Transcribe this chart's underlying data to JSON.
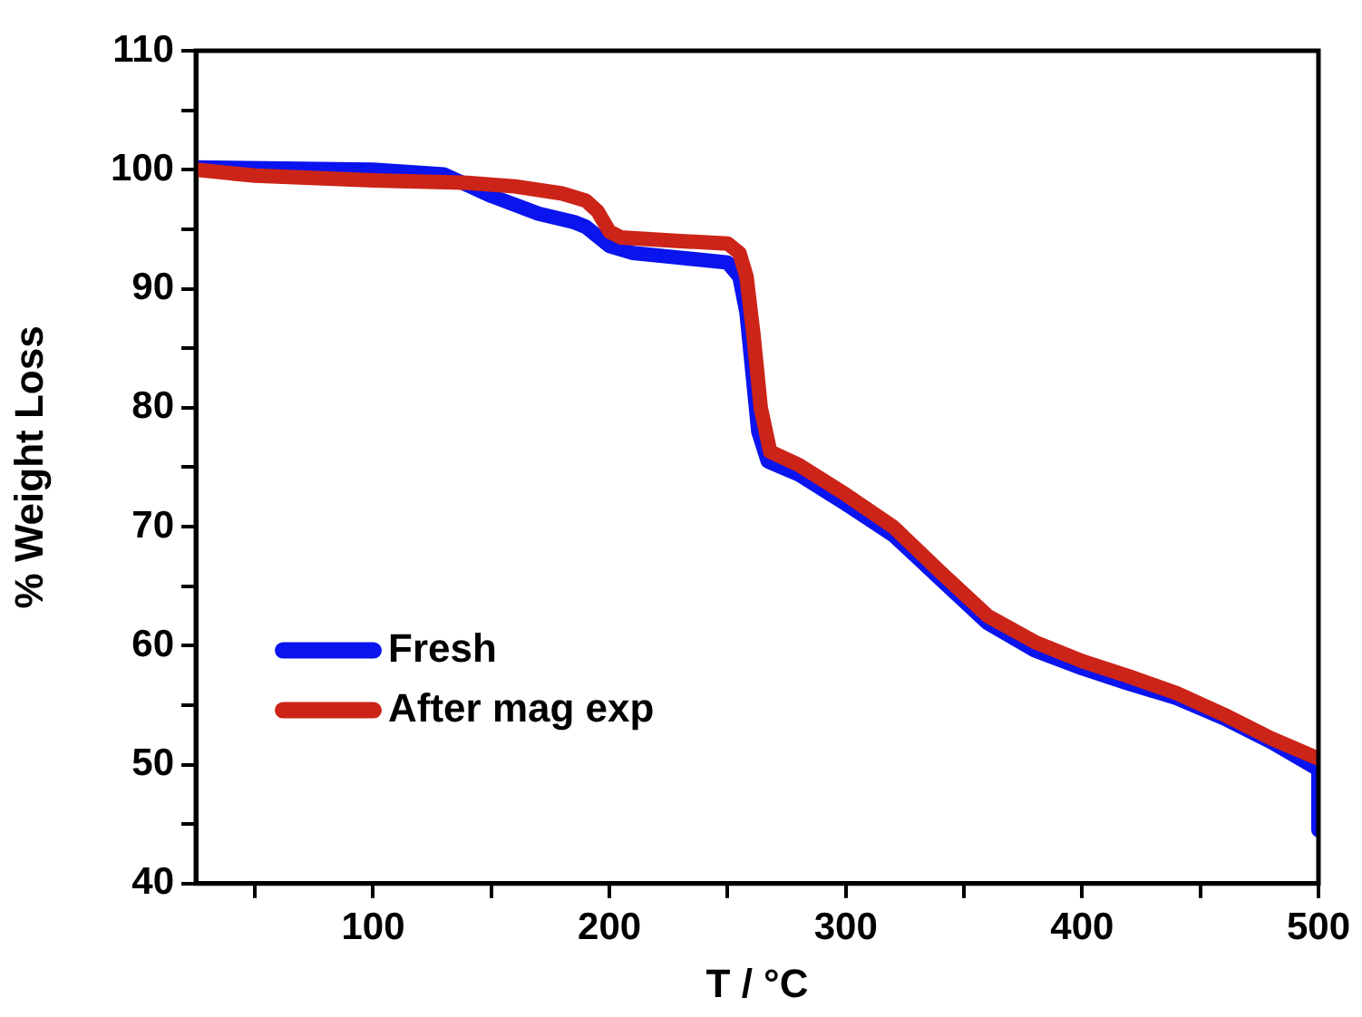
{
  "chart_data": {
    "type": "line",
    "xlabel": "T / °C",
    "ylabel": "% Weight Loss",
    "xlim": [
      25,
      500
    ],
    "xticks": [
      {
        "value": 50,
        "label": null
      },
      100,
      {
        "value": 150,
        "label": null
      },
      200,
      {
        "value": 250,
        "label": null
      },
      300,
      {
        "value": 350,
        "label": null
      },
      400,
      {
        "value": 450,
        "label": null
      },
      500
    ],
    "ylim": [
      40,
      110
    ],
    "yticks": [
      40,
      {
        "value": 45,
        "label": null
      },
      50,
      {
        "value": 55,
        "label": null
      },
      60,
      {
        "value": 65,
        "label": null
      },
      70,
      {
        "value": 75,
        "label": null
      },
      80,
      {
        "value": 85,
        "label": null
      },
      90,
      {
        "value": 95,
        "label": null
      },
      100,
      {
        "value": 105,
        "label": null
      },
      110
    ],
    "grid": false,
    "legend": "bottom left",
    "marker": "none",
    "line_style": "solid",
    "series": [
      {
        "name": "Fresh",
        "color": "#0a14ee",
        "x": [
          25,
          100,
          130,
          150,
          170,
          185,
          190,
          200,
          210,
          230,
          250,
          255,
          258,
          260,
          263,
          267,
          280,
          300,
          320,
          340,
          360,
          380,
          400,
          420,
          440,
          460,
          480,
          500,
          500
        ],
        "values": [
          100.2,
          100.0,
          99.6,
          97.8,
          96.3,
          95.6,
          95.2,
          93.6,
          93.0,
          92.6,
          92.2,
          91.0,
          88,
          84,
          78,
          75.5,
          74.4,
          71.9,
          69.3,
          65.6,
          61.9,
          59.6,
          58.1,
          56.8,
          55.6,
          53.9,
          51.9,
          49.6,
          44.5
        ]
      },
      {
        "name": "After mag exp",
        "color": "#cc2418",
        "x": [
          25,
          50,
          100,
          140,
          160,
          180,
          190,
          195,
          200,
          205,
          230,
          250,
          255,
          258,
          261,
          264,
          268,
          280,
          300,
          320,
          340,
          360,
          380,
          400,
          420,
          440,
          460,
          480,
          500
        ],
        "values": [
          100.0,
          99.5,
          99.1,
          98.9,
          98.6,
          98.0,
          97.4,
          96.5,
          94.8,
          94.3,
          94.0,
          93.8,
          93.0,
          91,
          86,
          80,
          76.3,
          75.2,
          72.7,
          70,
          66.2,
          62.5,
          60.3,
          58.7,
          57.4,
          56.0,
          54.2,
          52.2,
          50.5
        ]
      }
    ]
  }
}
